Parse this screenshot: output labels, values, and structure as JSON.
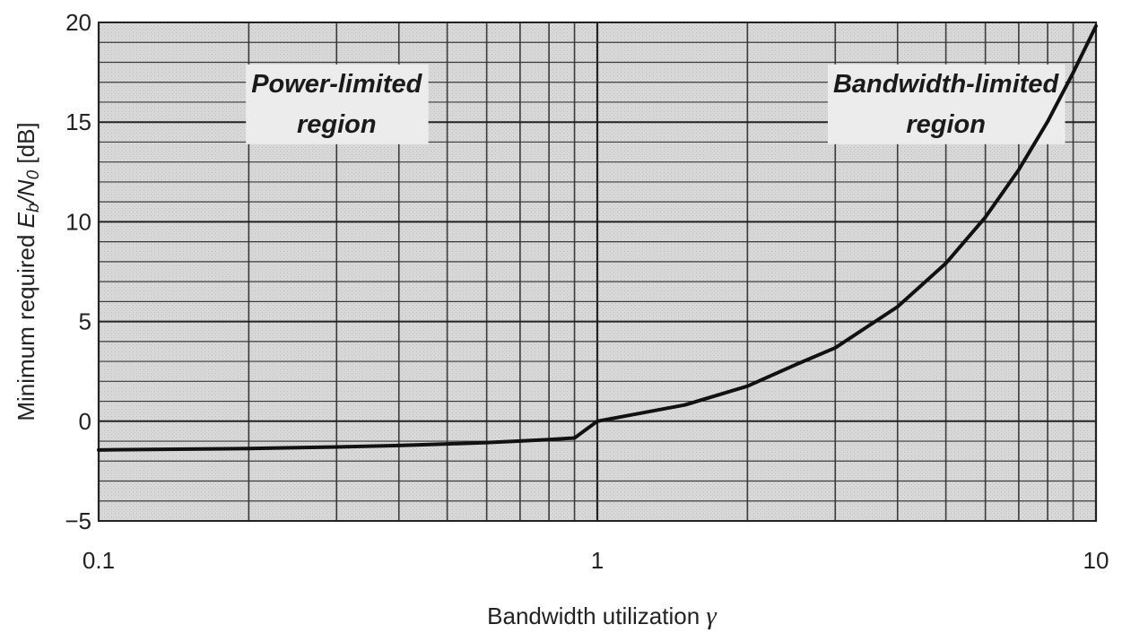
{
  "chart_data": {
    "type": "line",
    "title": "",
    "xlabel": "Bandwidth utilization",
    "xlabel_symbol": "γ",
    "ylabel": "Minimum required Eb/N0 [dB]",
    "ylabel_parts": {
      "prefix": "Minimum required ",
      "e": "E",
      "b": "b",
      "slash_n": "/N",
      "zero": "0",
      "suffix": " [dB]"
    },
    "xscale": "log",
    "xlim": [
      0.1,
      10
    ],
    "ylim": [
      -5,
      20
    ],
    "xticks": [
      0.1,
      1,
      10
    ],
    "xtick_labels": [
      "0.1",
      "1",
      "10"
    ],
    "yticks": [
      -5,
      0,
      5,
      10,
      15,
      20
    ],
    "ytick_labels": [
      "−5",
      "0",
      "5",
      "10",
      "15",
      "20"
    ],
    "grid": true,
    "series": [
      {
        "x": [
          0.1,
          0.2,
          0.3,
          0.4,
          0.5,
          0.6,
          0.7,
          0.8,
          0.9,
          1,
          1.5,
          2,
          2.5,
          3,
          4,
          5,
          6,
          7,
          8,
          9,
          10
        ],
        "y": [
          -1.44,
          -1.37,
          -1.29,
          -1.22,
          -1.14,
          -1.07,
          -0.99,
          -0.92,
          -0.84,
          0,
          0.82,
          1.76,
          2.84,
          3.68,
          5.74,
          7.92,
          10.23,
          12.61,
          15.03,
          17.48,
          19.82
        ]
      }
    ],
    "annotations": [
      {
        "lines": [
          "Power-limited",
          "region"
        ],
        "x": 0.3,
        "y": 16.5
      },
      {
        "lines": [
          "Bandwidth-limited",
          "region"
        ],
        "x": 5,
        "y": 16.5
      }
    ],
    "colors": {
      "line": "#111111",
      "grid": "#3a3a3a",
      "background": "#d6d6d6",
      "label_box": "#ececec"
    }
  }
}
